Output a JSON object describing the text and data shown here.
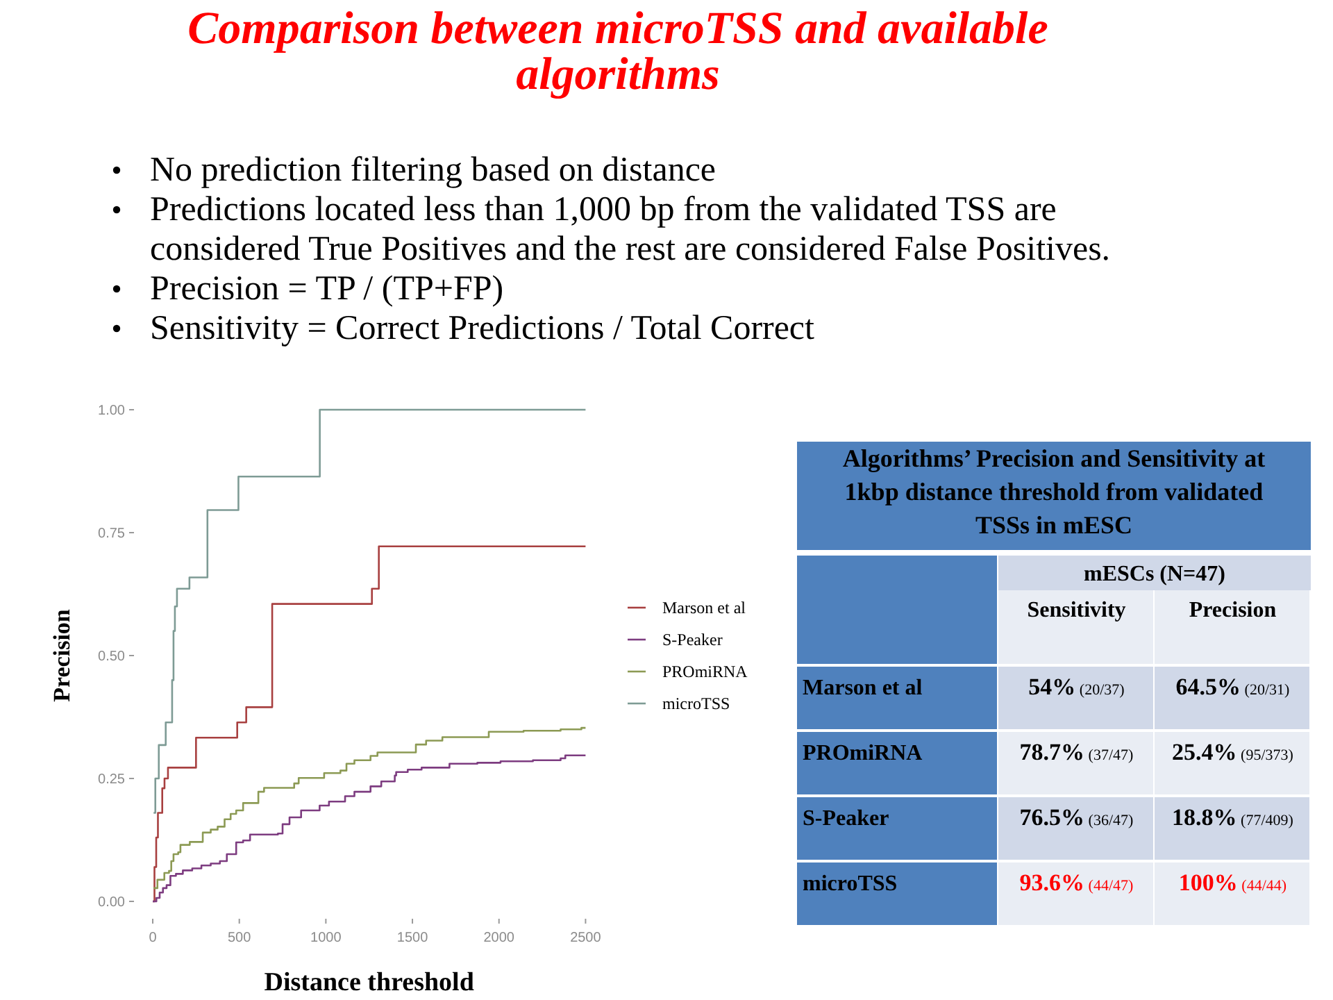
{
  "chart_data": [
    {
      "type": "step",
      "title": "Comparison between microTSS and available algorithms",
      "annotations": [
        "No prediction filtering based on distance",
        "Predictions located less than 1,000 bp from the validated TSS are considered True Positives and the rest are considered False Positives.",
        "Precision = TP / (TP+FP)",
        "Sensitivity = Correct Predictions / Total Correct"
      ],
      "xlabel": "Distance threshold",
      "ylabel": "Precision",
      "xlim": [
        0,
        2500
      ],
      "xticks": [
        0,
        500,
        1000,
        1500,
        2000,
        2500
      ],
      "ylim": [
        0,
        1
      ],
      "yticks": [
        {
          "value": 0,
          "label": "0.00"
        },
        {
          "value": 0.25,
          "label": "0.25"
        },
        {
          "value": 0.5,
          "label": "0.50"
        },
        {
          "value": 0.75,
          "label": "0.75"
        },
        {
          "value": 1,
          "label": "1.00"
        }
      ],
      "legend": "right",
      "series": [
        {
          "name": "Marson et al",
          "color": "#a84040",
          "x": [
            0,
            10,
            20,
            30,
            55,
            68,
            88,
            250,
            488,
            540,
            690,
            1266,
            1306,
            2500
          ],
          "values": [
            0,
            0.07,
            0.13,
            0.18,
            0.23,
            0.25,
            0.272,
            0.333,
            0.364,
            0.395,
            0.605,
            0.636,
            0.722,
            0.722
          ]
        },
        {
          "name": "S-Peaker",
          "color": "#7d3c80",
          "x": [
            0,
            21,
            40,
            59,
            80,
            102,
            134,
            174,
            228,
            281,
            335,
            388,
            428,
            482,
            522,
            562,
            723,
            750,
            790,
            857,
            964,
            1018,
            1111,
            1165,
            1258,
            1320,
            1398,
            1406,
            1473,
            1553,
            1714,
            1875,
            2009,
            2196,
            2356,
            2383,
            2500
          ],
          "values": [
            0,
            0.007,
            0.018,
            0.027,
            0.033,
            0.052,
            0.056,
            0.063,
            0.067,
            0.073,
            0.077,
            0.082,
            0.096,
            0.12,
            0.124,
            0.136,
            0.138,
            0.157,
            0.171,
            0.185,
            0.195,
            0.203,
            0.214,
            0.223,
            0.234,
            0.244,
            0.256,
            0.263,
            0.268,
            0.272,
            0.28,
            0.282,
            0.285,
            0.287,
            0.291,
            0.297,
            0.297
          ]
        },
        {
          "name": "PROmiRNA",
          "color": "#8c9a54",
          "x": [
            5,
            27,
            67,
            94,
            107,
            120,
            147,
            160,
            214,
            289,
            335,
            375,
            415,
            450,
            482,
            522,
            610,
            643,
            817,
            843,
            990,
            1084,
            1119,
            1165,
            1258,
            1298,
            1520,
            1579,
            1673,
            1941,
            2142,
            2356,
            2476,
            2500
          ],
          "values": [
            0.027,
            0.044,
            0.058,
            0.062,
            0.082,
            0.096,
            0.1,
            0.115,
            0.121,
            0.14,
            0.146,
            0.152,
            0.167,
            0.178,
            0.185,
            0.2,
            0.223,
            0.231,
            0.24,
            0.251,
            0.261,
            0.266,
            0.28,
            0.287,
            0.296,
            0.303,
            0.319,
            0.327,
            0.334,
            0.345,
            0.347,
            0.35,
            0.353,
            0.353
          ]
        },
        {
          "name": "microTSS",
          "color": "#7e9b95",
          "x": [
            5,
            15,
            35,
            75,
            112,
            120,
            128,
            140,
            212,
            316,
            495,
            965,
            2500
          ],
          "values": [
            0.18,
            0.25,
            0.318,
            0.364,
            0.45,
            0.55,
            0.6,
            0.636,
            0.659,
            0.796,
            0.864,
            1,
            1
          ]
        }
      ]
    },
    {
      "type": "other",
      "title": "Algorithms’ Precision and Sensitivity at 1kbp distance threshold from validated TSSs in mESC",
      "subtitle": "mESCs (N=47)",
      "categories": [
        "Sensitivity",
        "Precision"
      ],
      "y_categories": [
        "Marson et al",
        "PROmiRNA",
        "S-Peaker",
        "microTSS"
      ],
      "cell_labels": [
        [
          "54% (20/37)",
          "64.5% (20/31)"
        ],
        [
          "78.7% (37/47)",
          "25.4% (95/373)"
        ],
        [
          "76.5% (36/47)",
          "18.8% (77/409)"
        ],
        [
          "93.6% (44/47)",
          "100% (44/44)"
        ]
      ]
    }
  ]
}
